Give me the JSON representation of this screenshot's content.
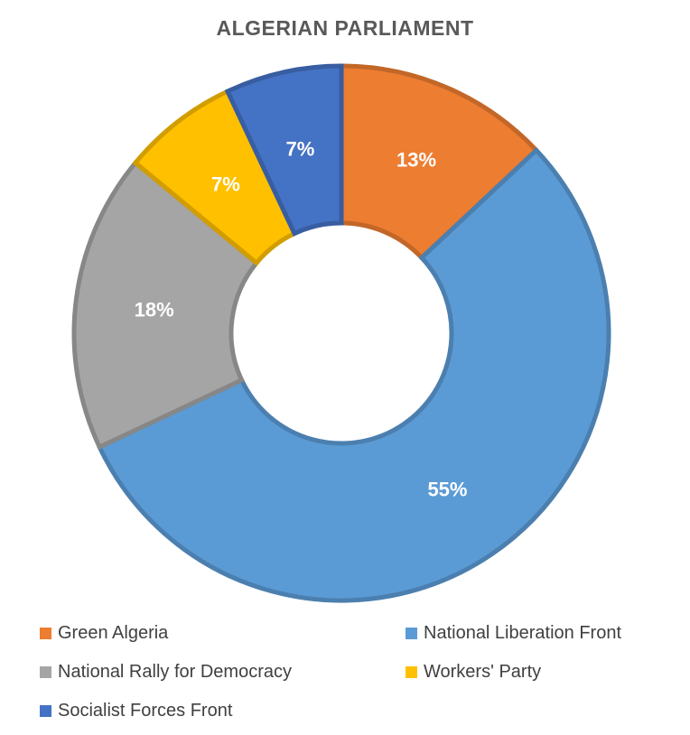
{
  "chart_data": {
    "type": "pie",
    "title": "ALGERIAN PARLIAMENT",
    "categories": [
      "Green Algeria",
      "National Liberation Front",
      "National Rally for Democracy",
      "Workers' Party",
      "Socialist Forces Front"
    ],
    "values": [
      13,
      55,
      18,
      7,
      7
    ],
    "labels": [
      "13%",
      "55%",
      "18%",
      "7%",
      "7%"
    ],
    "colors": [
      "#ED7D31",
      "#5B9BD5",
      "#A5A5A5",
      "#FFC000",
      "#4472C4"
    ],
    "style": "donut",
    "legend": "bottom"
  }
}
